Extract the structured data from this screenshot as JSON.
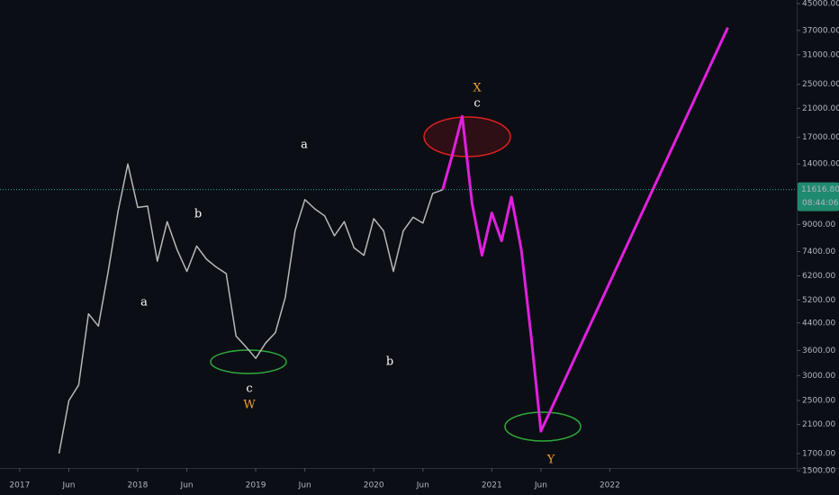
{
  "chart_data": {
    "type": "line",
    "log_scale": true,
    "grid": false,
    "xlim": [
      "2016-11",
      "2023-08"
    ],
    "ylim": [
      1530,
      46200
    ],
    "xticks": [
      {
        "value": "2017-01",
        "label": "2017"
      },
      {
        "value": "2017-06",
        "label": "Jun"
      },
      {
        "value": "2018-01",
        "label": "2018"
      },
      {
        "value": "2018-06",
        "label": "Jun"
      },
      {
        "value": "2019-01",
        "label": "2019"
      },
      {
        "value": "2019-06",
        "label": "Jun"
      },
      {
        "value": "2020-01",
        "label": "2020"
      },
      {
        "value": "2020-06",
        "label": "Jun"
      },
      {
        "value": "2021-01",
        "label": "2021"
      },
      {
        "value": "2021-06",
        "label": "Jun"
      },
      {
        "value": "2022-01",
        "label": "2022"
      }
    ],
    "yticks": [
      {
        "value": 1500,
        "label": "1500.00"
      },
      {
        "value": 1700,
        "label": "1700.00"
      },
      {
        "value": 2100,
        "label": "2100.00"
      },
      {
        "value": 2500,
        "label": "2500.00"
      },
      {
        "value": 3000,
        "label": "3000.00"
      },
      {
        "value": 3600,
        "label": "3600.00"
      },
      {
        "value": 4400,
        "label": "4400.00"
      },
      {
        "value": 5200,
        "label": "5200.00"
      },
      {
        "value": 6200,
        "label": "6200.00"
      },
      {
        "value": 7400,
        "label": "7400.00"
      },
      {
        "value": 9000,
        "label": "9000.00"
      },
      {
        "value": 14000,
        "label": "14000.00"
      },
      {
        "value": 17000,
        "label": "17000.00"
      },
      {
        "value": 21000,
        "label": "21000.00"
      },
      {
        "value": 25000,
        "label": "25000.00"
      },
      {
        "value": 31000,
        "label": "31000.00"
      },
      {
        "value": 37000,
        "label": "37000.00"
      },
      {
        "value": 45000,
        "label": "45000.00"
      }
    ],
    "current_price": {
      "value": 11616.8,
      "label": "11616.80"
    },
    "countdown": "08:44:06",
    "series": [
      {
        "color": "#b8b8b8",
        "x": [
          "2017-05",
          "2017-06",
          "2017-07",
          "2017-08",
          "2017-09",
          "2017-10",
          "2017-11",
          "2017-12",
          "2018-01",
          "2018-02",
          "2018-03",
          "2018-04",
          "2018-05",
          "2018-06",
          "2018-07",
          "2018-08",
          "2018-09",
          "2018-10",
          "2018-11",
          "2018-12",
          "2019-01",
          "2019-02",
          "2019-03",
          "2019-04",
          "2019-05",
          "2019-06",
          "2019-07",
          "2019-08",
          "2019-09",
          "2019-10",
          "2019-11",
          "2019-12",
          "2020-01",
          "2020-02",
          "2020-03",
          "2020-04",
          "2020-05",
          "2020-06",
          "2020-07",
          "2020-08"
        ],
        "values": [
          1700,
          2500,
          2800,
          4700,
          4300,
          6400,
          9900,
          14000,
          10200,
          10300,
          6900,
          9200,
          7500,
          6400,
          7700,
          7000,
          6600,
          6300,
          4000,
          3700,
          3400,
          3800,
          4100,
          5300,
          8600,
          10800,
          10100,
          9600,
          8300,
          9200,
          7600,
          7200,
          9400,
          8600,
          6400,
          8600,
          9500,
          9100,
          11300,
          11600
        ]
      },
      {
        "color": "#e020e0",
        "x": [
          "2020-08",
          "2020-09",
          "2020-10",
          "2020-11",
          "2020-12",
          "2021-01",
          "2021-02",
          "2021-03",
          "2021-04",
          "2021-05",
          "2021-06",
          "2023-01"
        ],
        "values": [
          11600,
          15000,
          19800,
          10500,
          7200,
          9800,
          8000,
          11000,
          7500,
          4000,
          2000,
          37800
        ]
      }
    ],
    "annotations": [
      {
        "text": "a",
        "color": "#ffffff"
      },
      {
        "text": "b",
        "color": "#ffffff"
      },
      {
        "text": "c",
        "color": "#ffffff"
      },
      {
        "text": "W",
        "color": "#f0a030"
      },
      {
        "text": "a",
        "color": "#ffffff"
      },
      {
        "text": "b",
        "color": "#ffffff"
      },
      {
        "text": "X",
        "color": "#f0a030"
      },
      {
        "text": "c",
        "color": "#ffffff"
      },
      {
        "text": "Y",
        "color": "#f0a030"
      }
    ]
  }
}
